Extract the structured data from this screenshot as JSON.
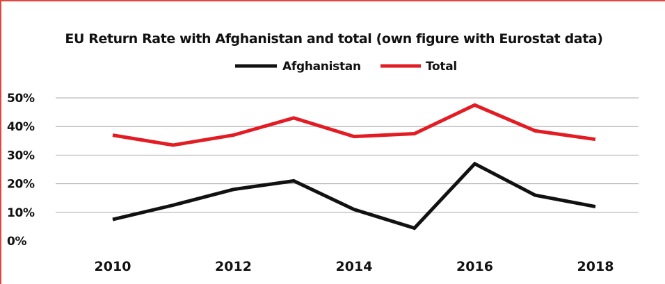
{
  "chart_data": {
    "type": "line",
    "title": "EU Return Rate with Afghanistan and total (own figure with Eurostat data)",
    "xlabel": "",
    "ylabel": "",
    "x": [
      2010,
      2011,
      2012,
      2013,
      2014,
      2015,
      2016,
      2017,
      2018
    ],
    "x_tick_labels": [
      "2010",
      "2012",
      "2014",
      "2016",
      "2018"
    ],
    "x_tick_values": [
      2010,
      2012,
      2014,
      2016,
      2018
    ],
    "y_tick_labels": [
      "0%",
      "10%",
      "20%",
      "30%",
      "40%",
      "50%"
    ],
    "y_tick_values": [
      0,
      10,
      20,
      30,
      40,
      50
    ],
    "ylim": [
      0,
      50
    ],
    "xlim": [
      2009.4,
      2018.7
    ],
    "grid": true,
    "legend_position": "top-center",
    "series": [
      {
        "name": "Afghanistan",
        "color": "#111111",
        "values": [
          7.5,
          12.5,
          18,
          21,
          11,
          4.5,
          27,
          16,
          12
        ]
      },
      {
        "name": "Total",
        "color": "#e31b23",
        "values": [
          37,
          33.5,
          37,
          43,
          36.5,
          37.5,
          47.5,
          38.5,
          35.5
        ]
      }
    ]
  }
}
